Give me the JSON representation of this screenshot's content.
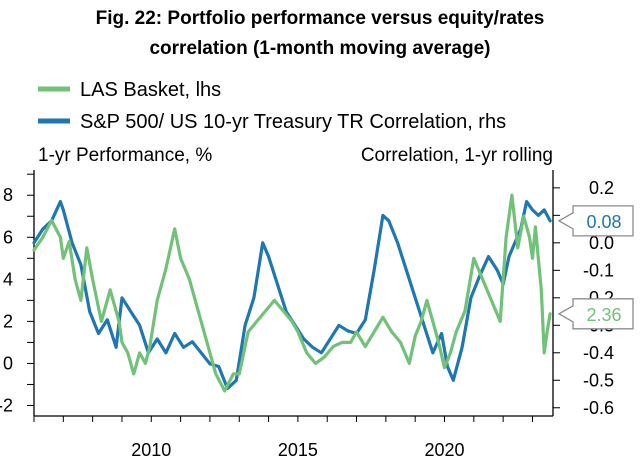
{
  "chart_data": {
    "type": "line",
    "title": "Fig. 22: Portfolio performance versus equity/rates correlation (1-month moving average)",
    "title_lines": [
      "Fig. 22: Portfolio performance versus equity/rates",
      "correlation (1-month moving average)"
    ],
    "left_axis_label": "1-yr Performance, %",
    "right_axis_label": "Correlation, 1-yr rolling",
    "x_ticks": [
      "2010",
      "2015",
      "2020"
    ],
    "x_range": [
      2006.0,
      2023.7
    ],
    "y_left_ticks": [
      "-2",
      "0",
      "2",
      "4",
      "6",
      "8"
    ],
    "y_left_range": [
      -2.5,
      9.2
    ],
    "y_right_ticks": [
      "-0.6",
      "-0.5",
      "-0.4",
      "-0.3",
      "-0.2",
      "-0.1",
      "0.0",
      "0.1",
      "0.2"
    ],
    "y_right_range": [
      -0.63,
      0.265
    ],
    "grid": false,
    "legend_position": "top-left",
    "series": [
      {
        "name": "LAS Basket, lhs",
        "axis": "left",
        "color": "#72c178",
        "last_value_label": "2.36",
        "x": [
          2006.0,
          2006.3,
          2006.6,
          2006.9,
          2007.0,
          2007.2,
          2007.4,
          2007.6,
          2007.8,
          2008.0,
          2008.3,
          2008.6,
          2008.9,
          2009.0,
          2009.2,
          2009.4,
          2009.6,
          2009.8,
          2009.95,
          2010.2,
          2010.5,
          2010.8,
          2011.0,
          2011.3,
          2011.6,
          2011.9,
          2012.2,
          2012.5,
          2012.8,
          2013.0,
          2013.3,
          2013.6,
          2013.9,
          2014.2,
          2014.5,
          2014.8,
          2015.0,
          2015.3,
          2015.6,
          2015.9,
          2016.2,
          2016.5,
          2016.8,
          2017.0,
          2017.3,
          2017.6,
          2017.9,
          2018.2,
          2018.5,
          2018.8,
          2019.0,
          2019.2,
          2019.4,
          2019.6,
          2019.8,
          2020.0,
          2020.2,
          2020.4,
          2020.7,
          2021.0,
          2021.3,
          2021.6,
          2021.9,
          2022.1,
          2022.3,
          2022.5,
          2022.7,
          2022.9,
          2023.0,
          2023.1,
          2023.2,
          2023.3,
          2023.4,
          2023.5,
          2023.6
        ],
        "values": [
          5.4,
          6.0,
          6.8,
          6.0,
          5.0,
          5.8,
          4.0,
          3.0,
          5.5,
          4.0,
          2.0,
          3.5,
          2.0,
          1.0,
          0.5,
          -0.5,
          0.5,
          0.0,
          0.8,
          3.0,
          4.5,
          6.4,
          5.0,
          4.0,
          2.5,
          1.0,
          -0.5,
          -1.3,
          -0.5,
          -0.5,
          1.5,
          2.0,
          2.5,
          3.0,
          2.5,
          2.0,
          1.5,
          0.5,
          0.0,
          0.3,
          0.8,
          1.0,
          1.0,
          1.5,
          0.8,
          1.5,
          2.2,
          1.5,
          1.0,
          0.0,
          1.3,
          2.0,
          3.0,
          2.0,
          1.0,
          -0.2,
          0.5,
          1.5,
          2.5,
          5.0,
          4.0,
          3.0,
          2.0,
          6.0,
          8.0,
          5.5,
          7.0,
          6.0,
          5.0,
          6.5,
          5.0,
          3.5,
          0.5,
          1.5,
          2.36
        ]
      },
      {
        "name": "S&P 500/ US 10-yr Treasury TR Correlation, rhs",
        "axis": "right",
        "color": "#1f77b0",
        "last_value_label": "0.08",
        "x": [
          2006.0,
          2006.3,
          2006.6,
          2006.9,
          2007.0,
          2007.3,
          2007.6,
          2007.9,
          2008.2,
          2008.5,
          2008.8,
          2009.0,
          2009.3,
          2009.6,
          2009.9,
          2010.2,
          2010.5,
          2010.8,
          2011.1,
          2011.4,
          2011.7,
          2012.0,
          2012.3,
          2012.6,
          2012.9,
          2013.2,
          2013.5,
          2013.8,
          2014.0,
          2014.3,
          2014.6,
          2014.9,
          2015.2,
          2015.5,
          2015.8,
          2016.1,
          2016.4,
          2016.7,
          2017.0,
          2017.3,
          2017.6,
          2017.9,
          2018.1,
          2018.4,
          2018.7,
          2019.0,
          2019.3,
          2019.6,
          2019.9,
          2020.1,
          2020.3,
          2020.6,
          2020.9,
          2021.2,
          2021.5,
          2021.8,
          2022.0,
          2022.2,
          2022.4,
          2022.6,
          2022.8,
          2023.0,
          2023.2,
          2023.4,
          2023.6
        ],
        "values": [
          0.0,
          0.05,
          0.08,
          0.15,
          0.12,
          0.0,
          -0.08,
          -0.25,
          -0.33,
          -0.28,
          -0.38,
          -0.2,
          -0.25,
          -0.3,
          -0.4,
          -0.35,
          -0.4,
          -0.33,
          -0.38,
          -0.36,
          -0.4,
          -0.44,
          -0.45,
          -0.53,
          -0.5,
          -0.3,
          -0.2,
          0.0,
          -0.05,
          -0.15,
          -0.25,
          -0.3,
          -0.35,
          -0.38,
          -0.4,
          -0.35,
          -0.3,
          -0.32,
          -0.33,
          -0.28,
          -0.1,
          0.1,
          0.08,
          0.0,
          -0.1,
          -0.2,
          -0.3,
          -0.4,
          -0.33,
          -0.45,
          -0.5,
          -0.38,
          -0.2,
          -0.12,
          -0.05,
          -0.1,
          -0.15,
          -0.05,
          0.0,
          0.05,
          0.15,
          0.12,
          0.1,
          0.12,
          0.08
        ]
      }
    ]
  }
}
